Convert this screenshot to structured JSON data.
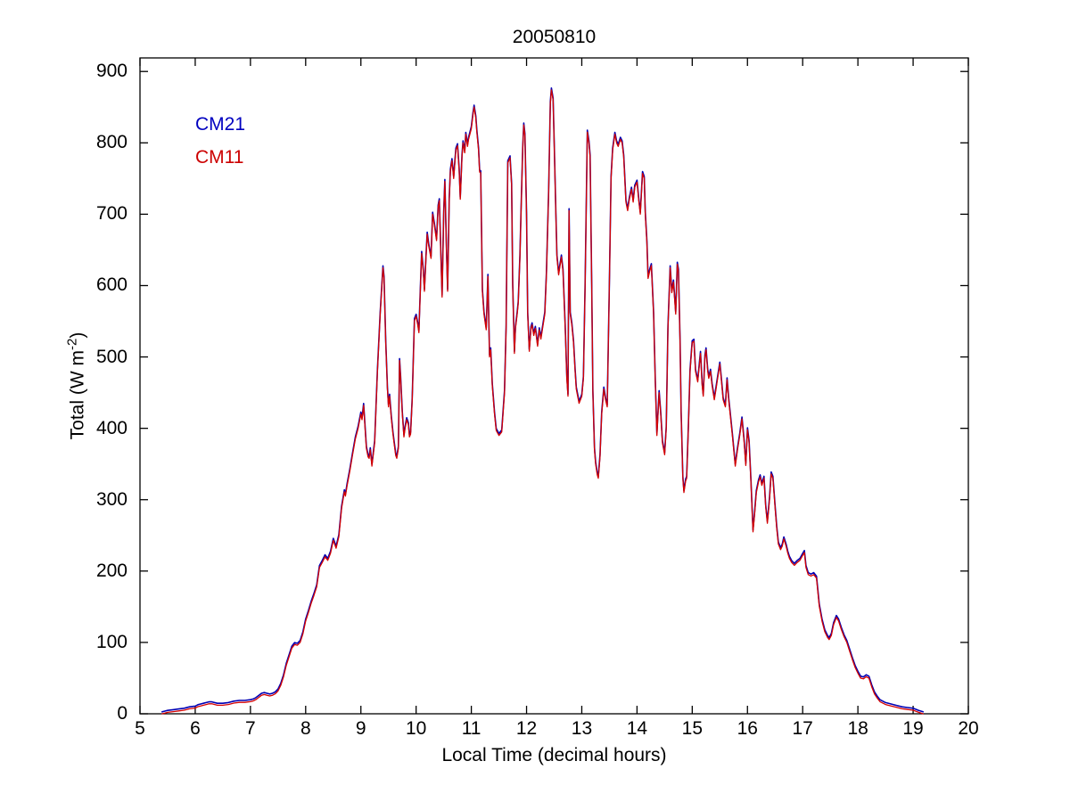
{
  "title": "20050810",
  "labels": {
    "x": "Local Time (decimal hours)",
    "y_prefix": "Total (W m",
    "y_sup": "-2",
    "y_suffix": ")"
  },
  "legend": {
    "cm21": "CM21",
    "cm11": "CM11",
    "cm21_color": "#0000C0",
    "cm11_color": "#CC0000"
  },
  "chart_data": {
    "type": "line",
    "title": "20050810",
    "xlabel": "Local Time (decimal hours)",
    "ylabel": "Total (W m^-2)",
    "xlim": [
      5,
      20
    ],
    "ylim": [
      0,
      919
    ],
    "xticks": [
      5,
      6,
      7,
      8,
      9,
      10,
      11,
      12,
      13,
      14,
      15,
      16,
      17,
      18,
      19,
      20
    ],
    "yticks": [
      0,
      100,
      200,
      300,
      400,
      500,
      600,
      700,
      800,
      900
    ],
    "grid": false,
    "legend_position": "upper-left-inside",
    "series_note": "CM21 (blue) and CM11 (red) pyranometer traces coincide at plot resolution; red is drawn over blue so blue shows only at spike tips",
    "series": [
      {
        "name": "CM21",
        "color": "#0000B4"
      },
      {
        "name": "CM11",
        "color": "#D40000"
      }
    ],
    "x": [
      5.4,
      5.45,
      5.5,
      5.6,
      5.7,
      5.8,
      5.9,
      6.0,
      6.05,
      6.1,
      6.15,
      6.2,
      6.25,
      6.3,
      6.4,
      6.5,
      6.6,
      6.7,
      6.8,
      6.9,
      7.0,
      7.05,
      7.1,
      7.15,
      7.2,
      7.25,
      7.3,
      7.35,
      7.4,
      7.45,
      7.5,
      7.55,
      7.6,
      7.65,
      7.7,
      7.75,
      7.8,
      7.85,
      7.9,
      7.95,
      8.0,
      8.05,
      8.1,
      8.15,
      8.2,
      8.25,
      8.3,
      8.35,
      8.4,
      8.45,
      8.5,
      8.55,
      8.6,
      8.65,
      8.7,
      8.72,
      8.75,
      8.8,
      8.85,
      8.9,
      8.95,
      9.0,
      9.02,
      9.05,
      9.08,
      9.1,
      9.13,
      9.15,
      9.17,
      9.2,
      9.25,
      9.3,
      9.35,
      9.4,
      9.42,
      9.45,
      9.48,
      9.5,
      9.52,
      9.55,
      9.58,
      9.6,
      9.63,
      9.65,
      9.68,
      9.7,
      9.72,
      9.75,
      9.78,
      9.8,
      9.83,
      9.86,
      9.88,
      9.9,
      9.93,
      9.97,
      10.0,
      10.03,
      10.05,
      10.08,
      10.1,
      10.13,
      10.15,
      10.18,
      10.2,
      10.23,
      10.27,
      10.3,
      10.33,
      10.37,
      10.4,
      10.42,
      10.45,
      10.47,
      10.5,
      10.52,
      10.55,
      10.57,
      10.6,
      10.62,
      10.65,
      10.68,
      10.7,
      10.72,
      10.75,
      10.78,
      10.8,
      10.83,
      10.85,
      10.88,
      10.9,
      10.93,
      10.95,
      11.0,
      11.03,
      11.05,
      11.08,
      11.1,
      11.13,
      11.15,
      11.17,
      11.2,
      11.23,
      11.27,
      11.3,
      11.33,
      11.35,
      11.38,
      11.42,
      11.45,
      11.5,
      11.55,
      11.6,
      11.63,
      11.66,
      11.7,
      11.73,
      11.75,
      11.78,
      11.8,
      11.83,
      11.85,
      11.88,
      11.9,
      11.93,
      11.95,
      11.97,
      12.0,
      12.02,
      12.05,
      12.08,
      12.1,
      12.13,
      12.16,
      12.2,
      12.23,
      12.26,
      12.3,
      12.33,
      12.36,
      12.4,
      12.43,
      12.45,
      12.48,
      12.5,
      12.53,
      12.55,
      12.58,
      12.6,
      12.63,
      12.66,
      12.7,
      12.73,
      12.75,
      12.77,
      12.79,
      12.82,
      12.85,
      12.88,
      12.9,
      12.95,
      13.0,
      13.03,
      13.06,
      13.1,
      13.13,
      13.15,
      13.18,
      13.2,
      13.23,
      13.25,
      13.28,
      13.3,
      13.33,
      13.36,
      13.4,
      13.43,
      13.46,
      13.5,
      13.53,
      13.56,
      13.6,
      13.63,
      13.66,
      13.7,
      13.73,
      13.76,
      13.8,
      13.83,
      13.86,
      13.9,
      13.93,
      13.96,
      14.0,
      14.03,
      14.06,
      14.1,
      14.13,
      14.15,
      14.18,
      14.2,
      14.23,
      14.26,
      14.3,
      14.33,
      14.36,
      14.4,
      14.43,
      14.46,
      14.5,
      14.53,
      14.56,
      14.6,
      14.63,
      14.66,
      14.7,
      14.73,
      14.75,
      14.78,
      14.8,
      14.83,
      14.85,
      14.88,
      14.9,
      14.93,
      14.96,
      15.0,
      15.03,
      15.06,
      15.1,
      15.13,
      15.15,
      15.18,
      15.2,
      15.23,
      15.25,
      15.28,
      15.3,
      15.33,
      15.36,
      15.4,
      15.43,
      15.46,
      15.5,
      15.53,
      15.56,
      15.6,
      15.63,
      15.66,
      15.7,
      15.73,
      15.78,
      15.82,
      15.86,
      15.9,
      15.94,
      15.97,
      16.0,
      16.03,
      16.06,
      16.1,
      16.13,
      16.16,
      16.2,
      16.23,
      16.26,
      16.3,
      16.33,
      16.36,
      16.4,
      16.43,
      16.46,
      16.5,
      16.53,
      16.56,
      16.6,
      16.63,
      16.66,
      16.7,
      16.73,
      16.76,
      16.8,
      16.85,
      16.9,
      16.95,
      17.0,
      17.03,
      17.06,
      17.1,
      17.15,
      17.2,
      17.25,
      17.3,
      17.35,
      17.4,
      17.45,
      17.48,
      17.52,
      17.56,
      17.61,
      17.65,
      17.7,
      17.75,
      17.8,
      17.85,
      17.9,
      17.95,
      18.0,
      18.05,
      18.1,
      18.15,
      18.2,
      18.25,
      18.3,
      18.35,
      18.4,
      18.5,
      18.6,
      18.7,
      18.8,
      18.9,
      19.0,
      19.1,
      19.18
    ],
    "values": [
      0,
      1,
      2,
      3,
      4,
      5,
      7,
      8,
      10,
      11,
      12,
      13,
      14,
      14,
      12,
      12,
      13,
      15,
      16,
      16,
      17,
      18,
      20,
      23,
      26,
      27,
      26,
      25,
      26,
      28,
      32,
      40,
      52,
      68,
      80,
      92,
      97,
      96,
      100,
      112,
      130,
      142,
      155,
      166,
      178,
      205,
      212,
      220,
      215,
      225,
      243,
      232,
      248,
      288,
      311,
      305,
      320,
      340,
      363,
      385,
      400,
      420,
      412,
      432,
      395,
      372,
      360,
      358,
      370,
      347,
      380,
      480,
      560,
      625,
      610,
      520,
      455,
      430,
      445,
      415,
      392,
      380,
      362,
      358,
      372,
      495,
      470,
      420,
      388,
      400,
      412,
      405,
      388,
      392,
      440,
      551,
      557,
      545,
      534,
      600,
      645,
      620,
      592,
      640,
      672,
      655,
      638,
      700,
      685,
      663,
      710,
      719,
      640,
      584,
      700,
      746,
      650,
      592,
      720,
      760,
      775,
      750,
      770,
      790,
      796,
      760,
      721,
      780,
      800,
      786,
      812,
      795,
      805,
      820,
      840,
      850,
      835,
      815,
      790,
      759,
      758,
      592,
      560,
      538,
      613,
      500,
      510,
      460,
      420,
      397,
      390,
      395,
      450,
      540,
      772,
      779,
      740,
      600,
      505,
      540,
      560,
      575,
      640,
      700,
      790,
      825,
      810,
      700,
      560,
      508,
      540,
      545,
      530,
      540,
      515,
      538,
      525,
      545,
      560,
      615,
      730,
      855,
      874,
      860,
      800,
      700,
      640,
      615,
      625,
      640,
      620,
      540,
      470,
      445,
      705,
      560,
      545,
      520,
      480,
      455,
      435,
      445,
      470,
      600,
      815,
      800,
      780,
      600,
      450,
      370,
      350,
      335,
      330,
      360,
      420,
      455,
      440,
      430,
      600,
      750,
      790,
      812,
      800,
      795,
      805,
      800,
      780,
      717,
      705,
      720,
      735,
      717,
      738,
      745,
      720,
      700,
      757,
      750,
      700,
      660,
      610,
      620,
      628,
      560,
      470,
      390,
      450,
      420,
      380,
      363,
      400,
      540,
      625,
      590,
      605,
      560,
      630,
      620,
      520,
      420,
      330,
      310,
      326,
      330,
      400,
      480,
      520,
      522,
      480,
      465,
      490,
      505,
      460,
      445,
      500,
      510,
      480,
      470,
      480,
      460,
      440,
      455,
      470,
      490,
      465,
      440,
      430,
      468,
      440,
      410,
      388,
      347,
      370,
      390,
      413,
      380,
      348,
      398,
      380,
      330,
      255,
      280,
      310,
      325,
      332,
      320,
      330,
      290,
      267,
      300,
      336,
      330,
      290,
      260,
      238,
      230,
      235,
      245,
      235,
      225,
      218,
      212,
      208,
      212,
      215,
      222,
      226,
      205,
      195,
      193,
      195,
      190,
      151,
      130,
      115,
      107,
      104,
      110,
      125,
      135,
      130,
      118,
      108,
      100,
      88,
      76,
      65,
      57,
      50,
      49,
      52,
      50,
      38,
      28,
      22,
      17,
      13,
      11,
      9,
      7,
      6,
      5,
      2,
      0
    ]
  }
}
